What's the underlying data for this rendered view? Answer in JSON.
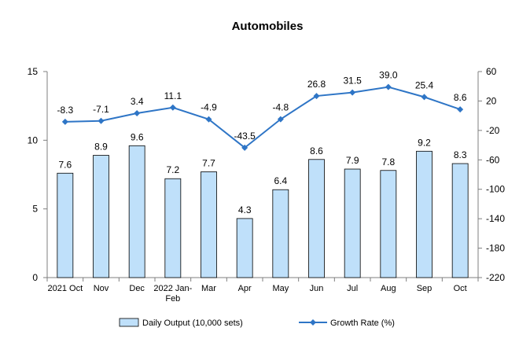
{
  "chart_data": {
    "type": "bar",
    "title": "Automobiles",
    "categories": [
      "2021 Oct",
      "Nov",
      "Dec",
      "2022 Jan-Feb",
      "Mar",
      "Apr",
      "May",
      "Jun",
      "Jul",
      "Aug",
      "Sep",
      "Oct"
    ],
    "series": [
      {
        "name": "Daily Output (10,000 sets)",
        "type": "bar",
        "axis": "left",
        "color": "#bfe0fa",
        "values": [
          7.6,
          8.9,
          9.6,
          7.2,
          7.7,
          4.3,
          6.4,
          8.6,
          7.9,
          7.8,
          9.2,
          8.3
        ]
      },
      {
        "name": "Growth Rate (%)",
        "type": "line",
        "axis": "right",
        "color": "#2e75c6",
        "values": [
          -8.3,
          -7.1,
          3.4,
          11.1,
          -4.9,
          -43.5,
          -4.8,
          26.8,
          31.5,
          39.0,
          25.4,
          8.6
        ]
      }
    ],
    "y_left": {
      "min": 0,
      "max": 15,
      "ticks": [
        0,
        5,
        10,
        15
      ]
    },
    "y_right": {
      "min": -220,
      "max": 60,
      "ticks": [
        -220,
        -180,
        -140,
        -100,
        -60,
        -20,
        20,
        60
      ]
    },
    "legend_position": "bottom",
    "grid": false
  }
}
